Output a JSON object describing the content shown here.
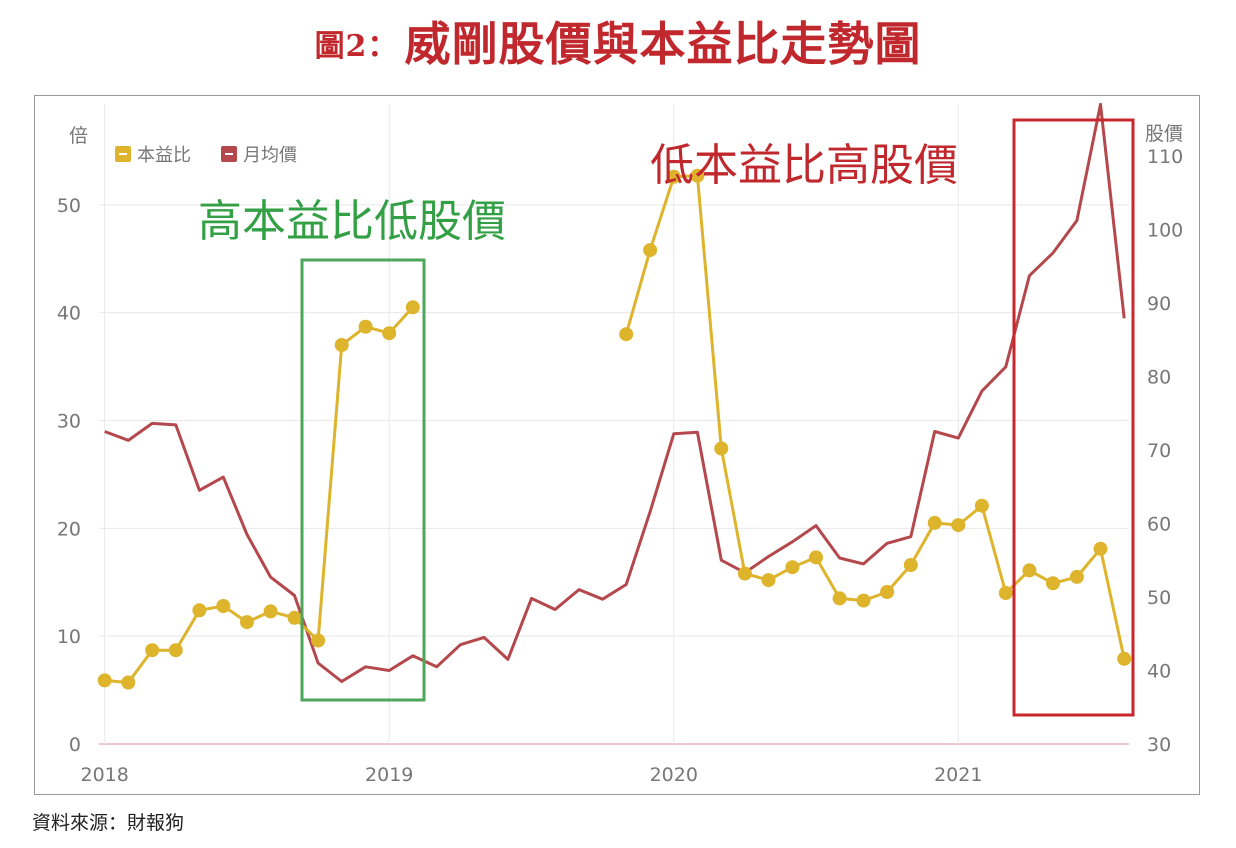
{
  "figure": {
    "title_prefix": "圖2：",
    "title": "威剛股價與本益比走勢圖",
    "source": "資料來源：財報狗"
  },
  "annotations": {
    "high_pe_low_price": "高本益比低股價",
    "low_pe_high_price": "低本益比高股價"
  },
  "colors": {
    "title": "#c0282d",
    "pe": "#ddb42c",
    "price": "#b4484c",
    "box_green": "#4ea65a",
    "box_red": "#c8282c",
    "text_green": "#34a046",
    "text_red": "#c0282d",
    "axis_text": "#777777",
    "grid": "#e8e8e8"
  },
  "chart_data": {
    "type": "line",
    "y_left_label": "倍",
    "y_right_label": "股價",
    "ylim_left": [
      0,
      60
    ],
    "ylim_right": [
      30,
      118
    ],
    "y_left_ticks": [
      0,
      10,
      20,
      30,
      40,
      50
    ],
    "y_right_ticks": [
      30,
      40,
      50,
      60,
      70,
      80,
      90,
      100,
      110
    ],
    "x_ticks": [
      2018,
      2019,
      2020,
      2021
    ],
    "grid": true,
    "legend_position": "top-left",
    "series": [
      {
        "name": "本益比",
        "axis": "left",
        "points": [
          [
            2018.0,
            5.9
          ],
          [
            2018.083,
            5.7
          ],
          [
            2018.167,
            8.7
          ],
          [
            2018.25,
            8.7
          ],
          [
            2018.333,
            12.4
          ],
          [
            2018.417,
            12.8
          ],
          [
            2018.5,
            11.3
          ],
          [
            2018.583,
            12.3
          ],
          [
            2018.667,
            11.7
          ],
          [
            2018.75,
            9.6
          ],
          [
            2018.833,
            37.0
          ],
          [
            2018.917,
            38.7
          ],
          [
            2019.0,
            38.1
          ],
          [
            2019.083,
            40.5
          ],
          null,
          [
            2019.833,
            38.0
          ],
          [
            2019.917,
            45.8
          ],
          [
            2020.0,
            52.6
          ],
          [
            2020.083,
            52.7
          ],
          [
            2020.167,
            27.4
          ],
          [
            2020.25,
            15.8
          ],
          [
            2020.333,
            15.2
          ],
          [
            2020.417,
            16.4
          ],
          [
            2020.5,
            17.3
          ],
          [
            2020.583,
            13.5
          ],
          [
            2020.667,
            13.3
          ],
          [
            2020.75,
            14.1
          ],
          [
            2020.833,
            16.6
          ],
          [
            2020.917,
            20.5
          ],
          [
            2021.0,
            20.3
          ],
          [
            2021.083,
            22.1
          ],
          [
            2021.167,
            14.0
          ],
          [
            2021.25,
            16.1
          ],
          [
            2021.333,
            14.9
          ],
          [
            2021.417,
            15.5
          ],
          [
            2021.5,
            18.1
          ],
          [
            2021.583,
            7.9
          ]
        ]
      },
      {
        "name": "月均價",
        "axis": "right",
        "points": [
          [
            2018.0,
            72.5
          ],
          [
            2018.083,
            71.3
          ],
          [
            2018.167,
            73.6
          ],
          [
            2018.25,
            73.4
          ],
          [
            2018.333,
            64.5
          ],
          [
            2018.417,
            66.3
          ],
          [
            2018.5,
            58.5
          ],
          [
            2018.583,
            52.7
          ],
          [
            2018.667,
            50.2
          ],
          [
            2018.75,
            41.0
          ],
          [
            2018.833,
            38.5
          ],
          [
            2018.917,
            40.5
          ],
          [
            2019.0,
            40.0
          ],
          [
            2019.083,
            42.0
          ],
          [
            2019.167,
            40.5
          ],
          [
            2019.25,
            43.5
          ],
          [
            2019.333,
            44.5
          ],
          [
            2019.417,
            41.5
          ],
          [
            2019.5,
            49.8
          ],
          [
            2019.583,
            48.3
          ],
          [
            2019.667,
            51.0
          ],
          [
            2019.75,
            49.7
          ],
          [
            2019.833,
            51.7
          ],
          [
            2019.917,
            61.6
          ],
          [
            2020.0,
            72.2
          ],
          [
            2020.083,
            72.4
          ],
          [
            2020.167,
            55.0
          ],
          [
            2020.25,
            53.3
          ],
          [
            2020.333,
            55.5
          ],
          [
            2020.417,
            57.5
          ],
          [
            2020.5,
            59.7
          ],
          [
            2020.583,
            55.3
          ],
          [
            2020.667,
            54.5
          ],
          [
            2020.75,
            57.3
          ],
          [
            2020.833,
            58.2
          ],
          [
            2020.917,
            72.5
          ],
          [
            2021.0,
            71.6
          ],
          [
            2021.083,
            78.0
          ],
          [
            2021.167,
            81.3
          ],
          [
            2021.25,
            93.7
          ],
          [
            2021.333,
            96.8
          ],
          [
            2021.417,
            101.2
          ],
          [
            2021.5,
            117.0
          ],
          [
            2021.583,
            87.9
          ]
        ]
      }
    ]
  }
}
